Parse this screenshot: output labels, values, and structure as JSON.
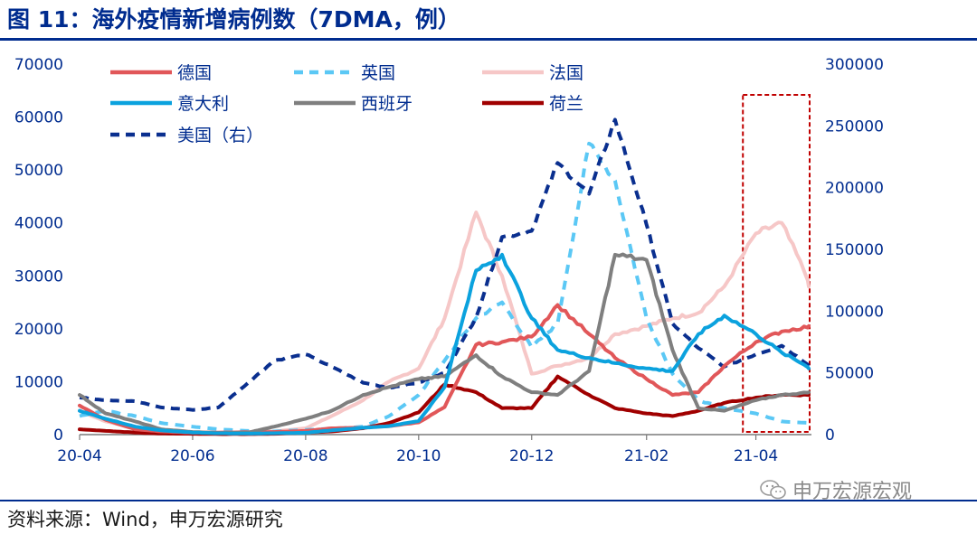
{
  "title": "图 11：海外疫情新增病例数（7DMA，例）",
  "source": "资料来源：Wind，申万宏源研究",
  "watermark": "申万宏源宏观",
  "chart_data": {
    "type": "line",
    "title": "海外疫情新增病例数（7DMA，例）",
    "x_tick_labels": [
      "20-04",
      "20-06",
      "20-08",
      "20-10",
      "20-12",
      "21-02",
      "21-04"
    ],
    "x": [
      "2020-04-01",
      "2020-04-15",
      "2020-05-01",
      "2020-05-15",
      "2020-06-01",
      "2020-06-15",
      "2020-07-01",
      "2020-07-15",
      "2020-08-01",
      "2020-08-15",
      "2020-09-01",
      "2020-09-15",
      "2020-10-01",
      "2020-10-15",
      "2020-11-01",
      "2020-11-15",
      "2020-12-01",
      "2020-12-15",
      "2021-01-01",
      "2021-01-15",
      "2021-02-01",
      "2021-02-15",
      "2021-03-01",
      "2021-03-15",
      "2021-04-01",
      "2021-04-15",
      "2021-05-01"
    ],
    "left_axis": {
      "ylim": [
        0,
        70000
      ],
      "ticks": [
        0,
        10000,
        20000,
        30000,
        40000,
        50000,
        60000,
        70000
      ]
    },
    "right_axis": {
      "ylim": [
        0,
        300000
      ],
      "ticks": [
        0,
        50000,
        100000,
        150000,
        200000,
        250000,
        300000
      ]
    },
    "highlight_box": {
      "x_range": [
        "2021-03-25",
        "2021-05-01"
      ]
    },
    "series": [
      {
        "name": "德国",
        "axis": "left",
        "color": "#E15759",
        "dash": "solid",
        "values": [
          5500,
          2800,
          1000,
          600,
          350,
          400,
          450,
          500,
          700,
          1200,
          1300,
          1600,
          2300,
          5200,
          17000,
          17500,
          18500,
          24500,
          19000,
          14500,
          10500,
          7500,
          8000,
          13000,
          17500,
          19500,
          20500
        ]
      },
      {
        "name": "英国",
        "axis": "left",
        "color": "#5BC8F5",
        "dash": "dashed",
        "values": [
          3500,
          4500,
          3500,
          2200,
          1500,
          1000,
          700,
          600,
          900,
          1100,
          1500,
          3500,
          7500,
          14000,
          22000,
          25000,
          16500,
          21000,
          55000,
          48000,
          22000,
          11500,
          6500,
          5000,
          4000,
          2500,
          2200
        ]
      },
      {
        "name": "法国",
        "axis": "left",
        "color": "#F6C7C7",
        "dash": "solid",
        "values": [
          4500,
          2500,
          1200,
          700,
          400,
          350,
          400,
          600,
          1200,
          3500,
          6500,
          10000,
          12500,
          22000,
          42000,
          30000,
          11500,
          13000,
          14500,
          19000,
          20500,
          22000,
          23000,
          28000,
          38000,
          40000,
          28000
        ]
      },
      {
        "name": "意大利",
        "axis": "left",
        "color": "#0BA2DE",
        "dash": "solid",
        "values": [
          4500,
          3000,
          1500,
          800,
          400,
          250,
          200,
          250,
          350,
          800,
          1300,
          1600,
          2600,
          9000,
          31000,
          34000,
          22000,
          16000,
          14500,
          13500,
          12500,
          12000,
          19000,
          22500,
          19000,
          15500,
          12500
        ]
      },
      {
        "name": "西班牙",
        "axis": "left",
        "color": "#7F7F7F",
        "dash": "solid",
        "values": [
          7500,
          4000,
          2500,
          1000,
          500,
          300,
          400,
          1500,
          3000,
          4500,
          7500,
          9000,
          10500,
          11000,
          15000,
          11000,
          8000,
          7500,
          12000,
          34000,
          33000,
          16000,
          5000,
          4500,
          6500,
          7500,
          8000
        ]
      },
      {
        "name": "荷兰",
        "axis": "left",
        "color": "#A00000",
        "dash": "solid",
        "values": [
          1000,
          700,
          400,
          200,
          150,
          100,
          100,
          150,
          400,
          600,
          1200,
          2200,
          4200,
          9500,
          8000,
          5000,
          5000,
          11000,
          7500,
          5000,
          4000,
          3500,
          4500,
          6000,
          7000,
          7500,
          7500
        ]
      },
      {
        "name": "美国（右）",
        "axis": "right",
        "color": "#0A2F8F",
        "dash": "dashed",
        "values": [
          30000,
          28000,
          27000,
          22000,
          20000,
          22000,
          42000,
          60000,
          65000,
          55000,
          42000,
          38000,
          42000,
          50000,
          95000,
          160000,
          165000,
          220000,
          195000,
          255000,
          170000,
          90000,
          70000,
          55000,
          65000,
          72000,
          55000
        ]
      }
    ]
  }
}
